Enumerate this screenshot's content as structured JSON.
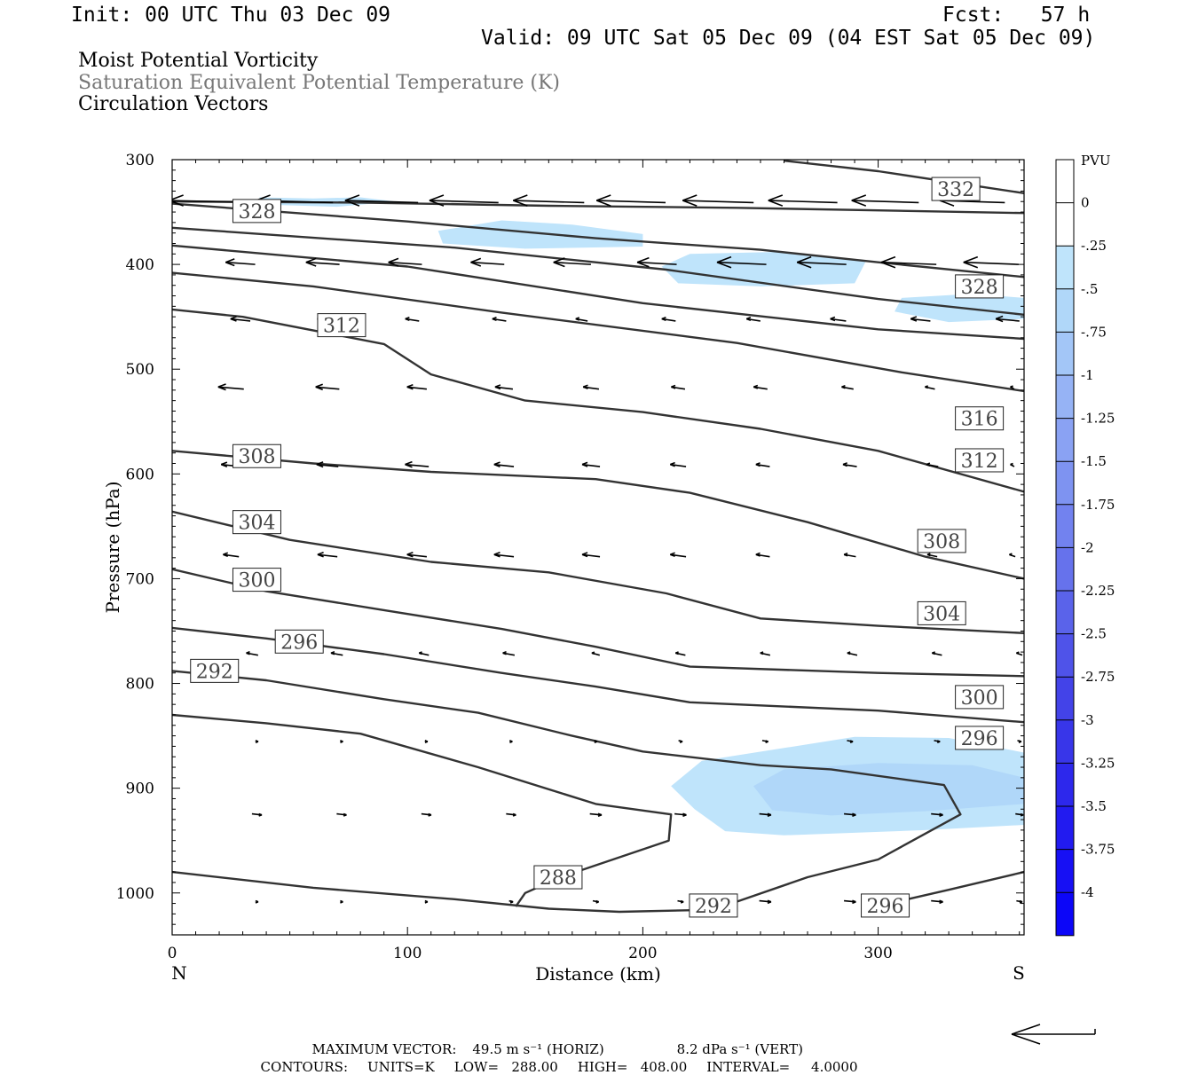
{
  "header": {
    "init": "Init: 00 UTC Thu 03 Dec 09",
    "fcst": "Fcst:   57 h",
    "valid": "Valid: 09 UTC Sat 05 Dec 09 (04 EST Sat 05 Dec 09)"
  },
  "titles": {
    "line1": "Moist Potential Vorticity",
    "line2": "Saturation Equivalent Potential Temperature (K)",
    "line3": "Circulation Vectors"
  },
  "footer": {
    "max_vector_label": "MAXIMUM VECTOR:",
    "max_horiz": "49.5 m s⁻¹ (HORIZ)",
    "max_vert": "8.2 dPa s⁻¹ (VERT)",
    "contours_label": "CONTOURS:",
    "units": "UNITS=K",
    "low": "LOW=   288.00",
    "high": "HIGH=   408.00",
    "interval": "INTERVAL=     4.0000"
  },
  "chart_data": {
    "type": "cross-section",
    "xlabel": "Distance (km)",
    "ylabel": "Pressure (hPa)",
    "xlim": [
      0,
      362
    ],
    "ylim": [
      1040,
      300
    ],
    "x_ticks": [
      0,
      100,
      200,
      300
    ],
    "y_ticks": [
      300,
      400,
      500,
      600,
      700,
      800,
      900,
      1000
    ],
    "x_end_labels": {
      "left": "N",
      "right": "S"
    },
    "colorbar": {
      "title": "PVU",
      "labels": [
        "0",
        "-.25",
        "-.5",
        "-.75",
        "-1",
        "-1.25",
        "-1.5",
        "-1.75",
        "-2",
        "-2.25",
        "-2.5",
        "-2.75",
        "-3",
        "-3.25",
        "-3.5",
        "-3.75",
        "-4"
      ],
      "colors": [
        "#ffffff",
        "#ffffff",
        "#bfe4fb",
        "#b0d7f9",
        "#a3c6f7",
        "#96b3f5",
        "#8aa2f3",
        "#7e93f1",
        "#7282ef",
        "#6672ec",
        "#5a63ea",
        "#4f53e9",
        "#4343e8",
        "#3836e9",
        "#2d28ec",
        "#221bf0",
        "#1710f4",
        "#0c06f8"
      ]
    },
    "contour_units": "K",
    "contour_interval": 4,
    "contours": [
      {
        "level": 288,
        "label": "288",
        "label_at": [
          164,
          985
        ],
        "points": [
          [
            146,
            1013
          ],
          [
            150,
            1000
          ],
          [
            165,
            985
          ],
          [
            211,
            950
          ],
          [
            212,
            925
          ],
          [
            180,
            915
          ],
          [
            130,
            880
          ],
          [
            80,
            848
          ],
          [
            40,
            838
          ],
          [
            0,
            830
          ]
        ]
      },
      {
        "level": 292,
        "label": "292",
        "label_at": [
          230,
          1012
        ],
        "points": [
          [
            0,
            980
          ],
          [
            60,
            995
          ],
          [
            120,
            1006
          ],
          [
            160,
            1015
          ],
          [
            190,
            1018
          ],
          [
            230,
            1016
          ],
          [
            270,
            985
          ],
          [
            300,
            968
          ],
          [
            335,
            925
          ],
          [
            328,
            897
          ],
          [
            280,
            882
          ],
          [
            250,
            878
          ],
          [
            200,
            865
          ],
          [
            170,
            850
          ],
          [
            130,
            828
          ],
          [
            90,
            815
          ],
          [
            40,
            797
          ],
          [
            0,
            788
          ]
        ],
        "extra_labels": [
          [
            18,
            788
          ]
        ]
      },
      {
        "level": 296,
        "label": "296",
        "label_at": [
          54,
          760
        ],
        "points": [
          [
            0,
            747
          ],
          [
            40,
            757
          ],
          [
            90,
            772
          ],
          [
            140,
            790
          ],
          [
            180,
            803
          ],
          [
            220,
            818
          ],
          [
            300,
            826
          ],
          [
            362,
            837
          ]
        ],
        "extra_labels": [
          [
            303,
            1012
          ],
          [
            343,
            852
          ]
        ],
        "lower_branch": [
          [
            295,
            1015
          ],
          [
            330,
            997
          ],
          [
            362,
            980
          ]
        ]
      },
      {
        "level": 300,
        "label": "300",
        "label_at": [
          36,
          701
        ],
        "points": [
          [
            0,
            691
          ],
          [
            40,
            712
          ],
          [
            90,
            730
          ],
          [
            140,
            748
          ],
          [
            180,
            765
          ],
          [
            220,
            784
          ],
          [
            300,
            790
          ],
          [
            362,
            793
          ]
        ],
        "extra_labels": [
          [
            343,
            813
          ]
        ]
      },
      {
        "level": 304,
        "label": "304",
        "label_at": [
          36,
          646
        ],
        "points": [
          [
            0,
            636
          ],
          [
            50,
            663
          ],
          [
            110,
            684
          ],
          [
            160,
            694
          ],
          [
            210,
            714
          ],
          [
            250,
            738
          ],
          [
            300,
            745
          ],
          [
            362,
            752
          ]
        ],
        "extra_labels": [
          [
            327,
            733
          ]
        ]
      },
      {
        "level": 308,
        "label": "308",
        "label_at": [
          36,
          583
        ],
        "points": [
          [
            0,
            578
          ],
          [
            60,
            590
          ],
          [
            110,
            598
          ],
          [
            180,
            605
          ],
          [
            220,
            618
          ],
          [
            270,
            646
          ],
          [
            320,
            679
          ],
          [
            362,
            700
          ]
        ],
        "extra_labels": [
          [
            327,
            664
          ]
        ]
      },
      {
        "level": 312,
        "label": "312",
        "label_at": [
          72,
          458
        ],
        "points": [
          [
            0,
            443
          ],
          [
            30,
            450
          ],
          [
            90,
            476
          ],
          [
            110,
            505
          ],
          [
            150,
            530
          ],
          [
            200,
            541
          ],
          [
            250,
            557
          ],
          [
            300,
            578
          ],
          [
            362,
            617
          ]
        ],
        "extra_labels": [
          [
            343,
            587
          ]
        ]
      },
      {
        "level": 316,
        "label": "316",
        "label_at": [
          343,
          547
        ],
        "points": [
          [
            0,
            408
          ],
          [
            60,
            421
          ],
          [
            140,
            446
          ],
          [
            240,
            475
          ],
          [
            310,
            503
          ],
          [
            362,
            521
          ]
        ]
      },
      {
        "level": 320,
        "label": "",
        "label_at": null,
        "points": [
          [
            0,
            382
          ],
          [
            100,
            402
          ],
          [
            200,
            437
          ],
          [
            300,
            462
          ],
          [
            362,
            471
          ]
        ]
      },
      {
        "level": 324,
        "label": "",
        "label_at": null,
        "points": [
          [
            0,
            365
          ],
          [
            120,
            384
          ],
          [
            210,
            405
          ],
          [
            300,
            433
          ],
          [
            362,
            448
          ]
        ]
      },
      {
        "level": 328,
        "label": "328",
        "label_at": [
          36,
          349
        ],
        "points": [
          [
            0,
            342
          ],
          [
            100,
            359
          ],
          [
            180,
            375
          ],
          [
            250,
            386
          ],
          [
            300,
            398
          ],
          [
            362,
            412
          ]
        ],
        "extra_labels": [
          [
            343,
            421
          ]
        ]
      },
      {
        "level": 332,
        "label": "332",
        "label_at": [
          333,
          328
        ],
        "points": [
          [
            260,
            301
          ],
          [
            300,
            311
          ],
          [
            362,
            332
          ]
        ]
      },
      {
        "level": 336,
        "label": "",
        "label_at": null,
        "points": [
          [
            0,
            340
          ],
          [
            80,
            341
          ],
          [
            160,
            344
          ],
          [
            240,
            346
          ],
          [
            362,
            351
          ]
        ]
      }
    ],
    "shaded_regions": [
      {
        "pvu_class": "-.25",
        "points": [
          [
            37,
            336
          ],
          [
            60,
            337
          ],
          [
            80,
            336
          ],
          [
            95,
            340
          ],
          [
            70,
            345
          ],
          [
            40,
            343
          ]
        ]
      },
      {
        "pvu_class": "-.25",
        "points": [
          [
            113,
            368
          ],
          [
            140,
            358
          ],
          [
            170,
            362
          ],
          [
            200,
            371
          ],
          [
            200,
            383
          ],
          [
            150,
            385
          ],
          [
            115,
            380
          ]
        ]
      },
      {
        "pvu_class": "-.25",
        "points": [
          [
            208,
            402
          ],
          [
            220,
            390
          ],
          [
            260,
            388
          ],
          [
            295,
            396
          ],
          [
            290,
            418
          ],
          [
            250,
            421
          ],
          [
            215,
            418
          ]
        ]
      },
      {
        "pvu_class": "-.25",
        "points": [
          [
            307,
            445
          ],
          [
            310,
            432
          ],
          [
            340,
            428
          ],
          [
            362,
            432
          ],
          [
            362,
            452
          ],
          [
            330,
            455
          ]
        ]
      },
      {
        "pvu_class": "-.25",
        "points": [
          [
            212,
            898
          ],
          [
            225,
            874
          ],
          [
            290,
            851
          ],
          [
            330,
            852
          ],
          [
            362,
            866
          ],
          [
            362,
            935
          ],
          [
            320,
            940
          ],
          [
            260,
            945
          ],
          [
            235,
            941
          ],
          [
            222,
            920
          ]
        ]
      },
      {
        "pvu_class": "-.5",
        "points": [
          [
            247,
            898
          ],
          [
            260,
            882
          ],
          [
            300,
            876
          ],
          [
            340,
            878
          ],
          [
            362,
            890
          ],
          [
            362,
            915
          ],
          [
            320,
            922
          ],
          [
            280,
            926
          ],
          [
            255,
            921
          ]
        ]
      }
    ],
    "vectors": {
      "note": "horizontal circulation vectors; u in m/s (negative = toward N), w shown as slight slope",
      "max_horiz_ms": 49.5,
      "max_vert_dpa": 8.2,
      "rows": [
        {
          "p": 340,
          "x": [
            18,
            52,
            89,
            124,
            160,
            195,
            232,
            268,
            303,
            340
          ],
          "u": [
            -46,
            -39,
            -37,
            -35,
            -36,
            -35,
            -36,
            -35,
            -34,
            -33
          ]
        },
        {
          "p": 399,
          "x": [
            29,
            64,
            99,
            134,
            170,
            206,
            242,
            276,
            313,
            348
          ],
          "u": [
            -15,
            -17,
            -17,
            -17,
            -19,
            -20,
            -25,
            -25,
            -28,
            -28
          ]
        },
        {
          "p": 453,
          "x": [
            29,
            65,
            102,
            139,
            174,
            211,
            247,
            283,
            318,
            355
          ],
          "u": [
            -10,
            -8,
            -7,
            -7,
            -6,
            -7,
            -7,
            -8,
            -10,
            -12
          ]
        },
        {
          "p": 518,
          "x": [
            25,
            66,
            104,
            141,
            178,
            215,
            250,
            287,
            322,
            357
          ],
          "u": [
            -13,
            -12,
            -10,
            -9,
            -8,
            -7,
            -7,
            -6,
            -5,
            -2
          ]
        },
        {
          "p": 592,
          "x": [
            25,
            66,
            104,
            141,
            178,
            215,
            251,
            288,
            323,
            357
          ],
          "u": [
            -10,
            -11,
            -12,
            -10,
            -9,
            -8,
            -7,
            -7,
            -6,
            -2
          ]
        },
        {
          "p": 678,
          "x": [
            25,
            66,
            104,
            141,
            178,
            215,
            251,
            288,
            323,
            357
          ],
          "u": [
            -8,
            -10,
            -10,
            -10,
            -9,
            -8,
            -7,
            -6,
            -5,
            -3
          ]
        },
        {
          "p": 772,
          "x": [
            34,
            70,
            107,
            143,
            180,
            216,
            252,
            289,
            325,
            360
          ],
          "u": [
            -6,
            -6,
            -5,
            -6,
            -4,
            -5,
            -5,
            -5,
            -5,
            -3
          ]
        },
        {
          "p": 855,
          "x": [
            36,
            72,
            108,
            144,
            180,
            216,
            252,
            288,
            325,
            360
          ],
          "u": [
            1,
            1,
            1,
            1,
            1,
            2,
            3,
            3,
            3,
            2
          ]
        },
        {
          "p": 925,
          "x": [
            36,
            72,
            108,
            144,
            180,
            216,
            252,
            288,
            325,
            360
          ],
          "u": [
            5,
            5,
            5,
            5,
            6,
            6,
            6,
            6,
            6,
            4
          ]
        },
        {
          "p": 1008,
          "x": [
            36,
            72,
            108,
            144,
            180,
            216,
            252,
            288,
            325,
            360
          ],
          "u": [
            1,
            1,
            1,
            2,
            3,
            3,
            6,
            6,
            6,
            3
          ]
        }
      ]
    }
  }
}
